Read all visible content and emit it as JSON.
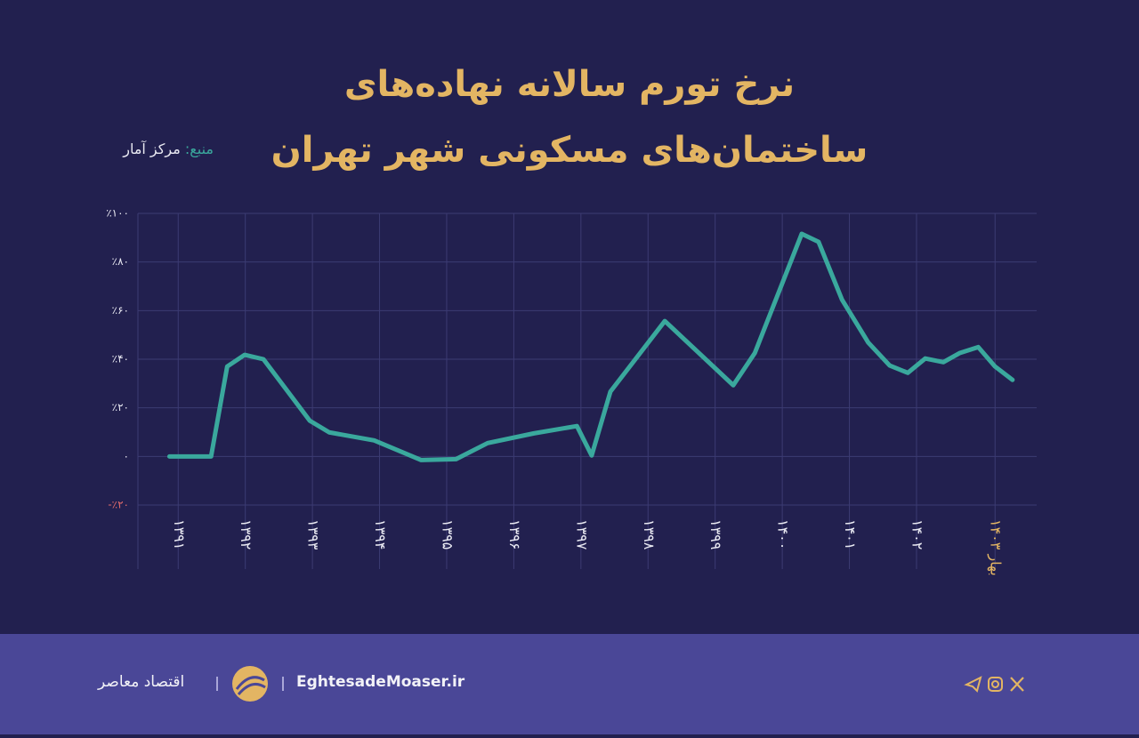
{
  "chart_data": {
    "type": "line",
    "title": "نرخ تورم سالانه نهاده‌های\nساختمان‌های مسکونی شهر تهران",
    "source_label": "منبع:",
    "source": "مرکز آمار",
    "x": [
      1390.87,
      1391.49,
      1391.73,
      1391.99,
      1392.27,
      1392.96,
      1393.25,
      1393.92,
      1394.62,
      1395.14,
      1395.61,
      1396.3,
      1396.94,
      1397.16,
      1397.44,
      1398.25,
      1399.27,
      1399.59,
      1400.29,
      1400.54,
      1400.89,
      1401.28,
      1401.6,
      1401.87,
      1402.13,
      1402.4,
      1402.64,
      1402.92,
      1403.17,
      1403.43
    ],
    "values": [
      0,
      0,
      37,
      41.8,
      40,
      14.7,
      9.9,
      6.6,
      -1.5,
      -1.1,
      5.5,
      9.5,
      12.5,
      0.4,
      26.7,
      55.7,
      29.3,
      42.5,
      91.6,
      88.3,
      64.5,
      46.9,
      37.4,
      34.4,
      40.3,
      38.8,
      42.5,
      45,
      37,
      31.5
    ],
    "color": "#3aa89d",
    "xlim": [
      1390.4,
      1403.79
    ],
    "xticks": [
      {
        "value": 1391,
        "label": "۱۳۹۱"
      },
      {
        "value": 1392,
        "label": "۱۳۹۲"
      },
      {
        "value": 1393,
        "label": "۱۳۹۳"
      },
      {
        "value": 1394,
        "label": "۱۳۹۴"
      },
      {
        "value": 1395,
        "label": "۱۳۹۵"
      },
      {
        "value": 1396,
        "label": "۱۳۹۶"
      },
      {
        "value": 1397,
        "label": "۱۳۹۷"
      },
      {
        "value": 1398,
        "label": "۱۳۹۸"
      },
      {
        "value": 1399,
        "label": "۱۳۹۹"
      },
      {
        "value": 1400,
        "label": "۱۴۰۰"
      },
      {
        "value": 1401,
        "label": "۱۴۰۱"
      },
      {
        "value": 1402,
        "label": "۱۴۰۲"
      },
      {
        "value": 1403.17,
        "label": "بهار ۱۴۰۳"
      }
    ],
    "ylim": [
      -20,
      100
    ],
    "yticks": [
      {
        "value": -20,
        "label": "-٪۲۰"
      },
      {
        "value": 0,
        "label": "۰"
      },
      {
        "value": 20,
        "label": "٪۲۰"
      },
      {
        "value": 40,
        "label": "٪۴۰"
      },
      {
        "value": 60,
        "label": "٪۶۰"
      },
      {
        "value": 80,
        "label": "٪۸۰"
      },
      {
        "value": 100,
        "label": "٪۱۰۰"
      }
    ],
    "grid": true
  },
  "footer": {
    "brand": "اقتصاد معاصر",
    "site": "EghtesadeMoaser.ir"
  }
}
